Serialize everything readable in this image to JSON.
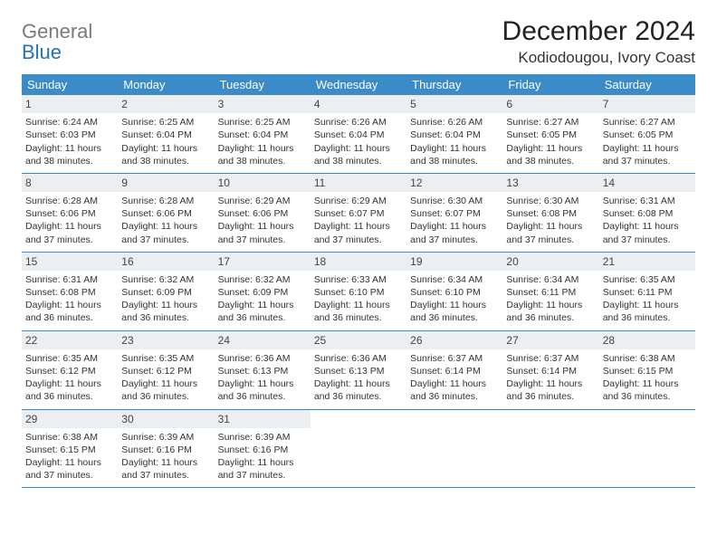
{
  "logo": {
    "part1": "General",
    "part2": "Blue"
  },
  "title": "December 2024",
  "location": "Kodiodougou, Ivory Coast",
  "colors": {
    "header_bg": "#3b8bc9",
    "header_text": "#ffffff",
    "daynum_bg": "#eceff1",
    "row_border": "#3b8bc9",
    "logo_gray": "#7a7a7a",
    "logo_blue": "#2571b8",
    "body_text": "#333333"
  },
  "weekdays": [
    "Sunday",
    "Monday",
    "Tuesday",
    "Wednesday",
    "Thursday",
    "Friday",
    "Saturday"
  ],
  "calendar": {
    "type": "table",
    "columns": 7,
    "rows": 5,
    "start_weekday_index": 0,
    "days_in_month": 31
  },
  "days": [
    {
      "n": 1,
      "sunrise": "6:24 AM",
      "sunset": "6:03 PM",
      "daylight": "11 hours and 38 minutes."
    },
    {
      "n": 2,
      "sunrise": "6:25 AM",
      "sunset": "6:04 PM",
      "daylight": "11 hours and 38 minutes."
    },
    {
      "n": 3,
      "sunrise": "6:25 AM",
      "sunset": "6:04 PM",
      "daylight": "11 hours and 38 minutes."
    },
    {
      "n": 4,
      "sunrise": "6:26 AM",
      "sunset": "6:04 PM",
      "daylight": "11 hours and 38 minutes."
    },
    {
      "n": 5,
      "sunrise": "6:26 AM",
      "sunset": "6:04 PM",
      "daylight": "11 hours and 38 minutes."
    },
    {
      "n": 6,
      "sunrise": "6:27 AM",
      "sunset": "6:05 PM",
      "daylight": "11 hours and 38 minutes."
    },
    {
      "n": 7,
      "sunrise": "6:27 AM",
      "sunset": "6:05 PM",
      "daylight": "11 hours and 37 minutes."
    },
    {
      "n": 8,
      "sunrise": "6:28 AM",
      "sunset": "6:06 PM",
      "daylight": "11 hours and 37 minutes."
    },
    {
      "n": 9,
      "sunrise": "6:28 AM",
      "sunset": "6:06 PM",
      "daylight": "11 hours and 37 minutes."
    },
    {
      "n": 10,
      "sunrise": "6:29 AM",
      "sunset": "6:06 PM",
      "daylight": "11 hours and 37 minutes."
    },
    {
      "n": 11,
      "sunrise": "6:29 AM",
      "sunset": "6:07 PM",
      "daylight": "11 hours and 37 minutes."
    },
    {
      "n": 12,
      "sunrise": "6:30 AM",
      "sunset": "6:07 PM",
      "daylight": "11 hours and 37 minutes."
    },
    {
      "n": 13,
      "sunrise": "6:30 AM",
      "sunset": "6:08 PM",
      "daylight": "11 hours and 37 minutes."
    },
    {
      "n": 14,
      "sunrise": "6:31 AM",
      "sunset": "6:08 PM",
      "daylight": "11 hours and 37 minutes."
    },
    {
      "n": 15,
      "sunrise": "6:31 AM",
      "sunset": "6:08 PM",
      "daylight": "11 hours and 36 minutes."
    },
    {
      "n": 16,
      "sunrise": "6:32 AM",
      "sunset": "6:09 PM",
      "daylight": "11 hours and 36 minutes."
    },
    {
      "n": 17,
      "sunrise": "6:32 AM",
      "sunset": "6:09 PM",
      "daylight": "11 hours and 36 minutes."
    },
    {
      "n": 18,
      "sunrise": "6:33 AM",
      "sunset": "6:10 PM",
      "daylight": "11 hours and 36 minutes."
    },
    {
      "n": 19,
      "sunrise": "6:34 AM",
      "sunset": "6:10 PM",
      "daylight": "11 hours and 36 minutes."
    },
    {
      "n": 20,
      "sunrise": "6:34 AM",
      "sunset": "6:11 PM",
      "daylight": "11 hours and 36 minutes."
    },
    {
      "n": 21,
      "sunrise": "6:35 AM",
      "sunset": "6:11 PM",
      "daylight": "11 hours and 36 minutes."
    },
    {
      "n": 22,
      "sunrise": "6:35 AM",
      "sunset": "6:12 PM",
      "daylight": "11 hours and 36 minutes."
    },
    {
      "n": 23,
      "sunrise": "6:35 AM",
      "sunset": "6:12 PM",
      "daylight": "11 hours and 36 minutes."
    },
    {
      "n": 24,
      "sunrise": "6:36 AM",
      "sunset": "6:13 PM",
      "daylight": "11 hours and 36 minutes."
    },
    {
      "n": 25,
      "sunrise": "6:36 AM",
      "sunset": "6:13 PM",
      "daylight": "11 hours and 36 minutes."
    },
    {
      "n": 26,
      "sunrise": "6:37 AM",
      "sunset": "6:14 PM",
      "daylight": "11 hours and 36 minutes."
    },
    {
      "n": 27,
      "sunrise": "6:37 AM",
      "sunset": "6:14 PM",
      "daylight": "11 hours and 36 minutes."
    },
    {
      "n": 28,
      "sunrise": "6:38 AM",
      "sunset": "6:15 PM",
      "daylight": "11 hours and 36 minutes."
    },
    {
      "n": 29,
      "sunrise": "6:38 AM",
      "sunset": "6:15 PM",
      "daylight": "11 hours and 37 minutes."
    },
    {
      "n": 30,
      "sunrise": "6:39 AM",
      "sunset": "6:16 PM",
      "daylight": "11 hours and 37 minutes."
    },
    {
      "n": 31,
      "sunrise": "6:39 AM",
      "sunset": "6:16 PM",
      "daylight": "11 hours and 37 minutes."
    }
  ],
  "labels": {
    "sunrise_prefix": "Sunrise: ",
    "sunset_prefix": "Sunset: ",
    "daylight_prefix": "Daylight: "
  }
}
